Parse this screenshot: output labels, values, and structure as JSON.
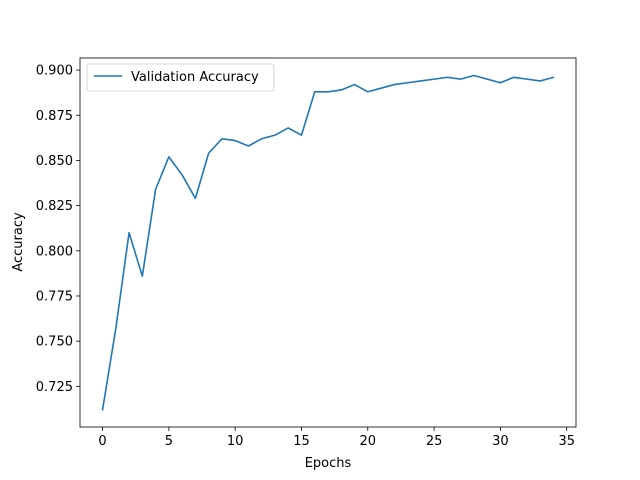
{
  "chart_data": {
    "type": "line",
    "title": "",
    "xlabel": "Epochs",
    "ylabel": "Accuracy",
    "xlim": [
      -1.7,
      35.7
    ],
    "ylim": [
      0.7025,
      0.9067
    ],
    "xticks": [
      0,
      5,
      10,
      15,
      20,
      25,
      30,
      35
    ],
    "yticks": [
      0.725,
      0.75,
      0.775,
      0.8,
      0.825,
      0.85,
      0.875,
      0.9
    ],
    "ytick_labels": [
      "0.725",
      "0.750",
      "0.775",
      "0.800",
      "0.825",
      "0.850",
      "0.875",
      "0.900"
    ],
    "grid": false,
    "legend_position": "top-left",
    "series": [
      {
        "name": "Validation Accuracy",
        "color": "#1f77b4",
        "x": [
          0,
          1,
          2,
          3,
          4,
          5,
          6,
          7,
          8,
          9,
          10,
          11,
          12,
          13,
          14,
          15,
          16,
          17,
          18,
          19,
          20,
          21,
          22,
          23,
          24,
          25,
          26,
          27,
          28,
          29,
          30,
          31,
          32,
          33,
          34
        ],
        "y": [
          0.712,
          0.757,
          0.81,
          0.786,
          0.834,
          0.852,
          0.842,
          0.829,
          0.854,
          0.862,
          0.861,
          0.858,
          0.862,
          0.864,
          0.868,
          0.864,
          0.888,
          0.888,
          0.889,
          0.892,
          0.888,
          0.89,
          0.892,
          0.893,
          0.894,
          0.895,
          0.896,
          0.895,
          0.897,
          0.895,
          0.893,
          0.896,
          0.895,
          0.894,
          0.896
        ]
      }
    ]
  }
}
